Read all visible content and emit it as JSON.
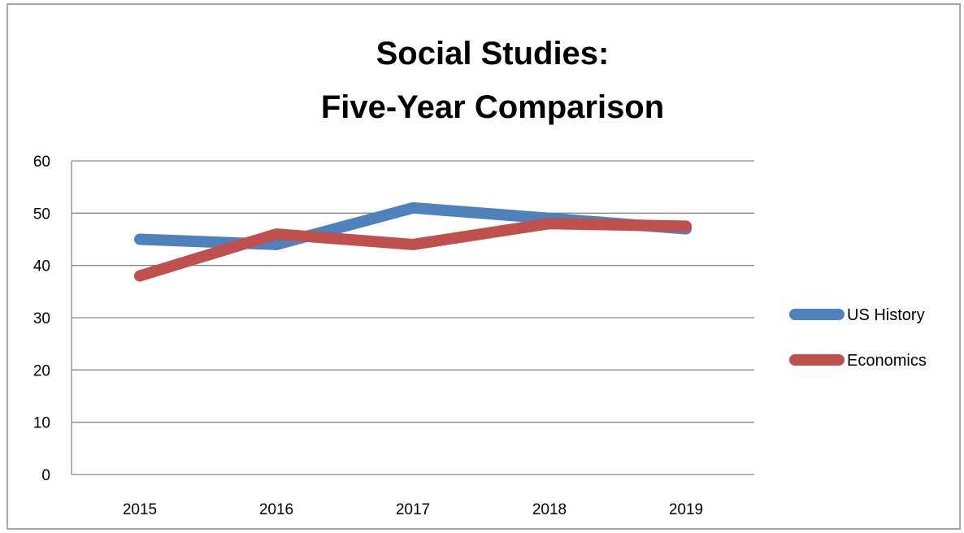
{
  "chart_data": {
    "type": "line",
    "title_lines": [
      "Social Studies:",
      "Five-Year Comparison"
    ],
    "categories": [
      "2015",
      "2016",
      "2017",
      "2018",
      "2019"
    ],
    "series": [
      {
        "name": "US History",
        "values": [
          45,
          44,
          51,
          49,
          47
        ],
        "color": "#4f81bd"
      },
      {
        "name": "Economics",
        "values": [
          38,
          46,
          44,
          48,
          47.5
        ],
        "color": "#c0504d"
      }
    ],
    "ylim": [
      0,
      60
    ],
    "yticks": [
      "0",
      "10",
      "20",
      "30",
      "40",
      "50",
      "60"
    ],
    "xlabel": "",
    "ylabel": "",
    "grid": true,
    "legend_position": "right"
  }
}
